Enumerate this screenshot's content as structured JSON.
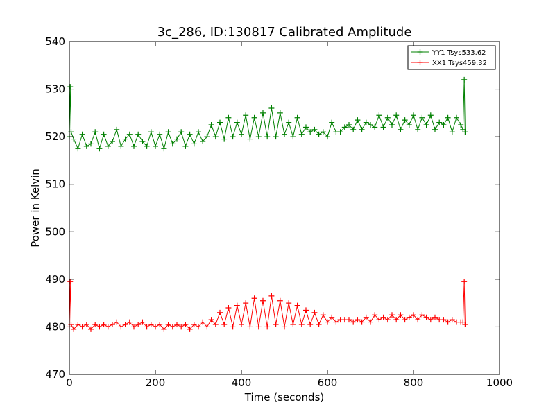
{
  "chart_data": {
    "type": "line",
    "title": "3c_286, ID:130817 Calibrated Amplitude",
    "xlabel": "Time (seconds)",
    "ylabel": "Power in Kelvin",
    "xlim": [
      0,
      1000
    ],
    "ylim": [
      470,
      540
    ],
    "x_ticks": [
      "0",
      "200",
      "400",
      "600",
      "800",
      "1000"
    ],
    "y_ticks": [
      "470",
      "480",
      "490",
      "500",
      "510",
      "520",
      "530",
      "540"
    ],
    "grid": false,
    "legend_position": "top-right",
    "marker": "plus",
    "series": [
      {
        "name": "YY1 Tsys533.62",
        "color": "#008000",
        "x": [
          0,
          2,
          4,
          10,
          20,
          30,
          40,
          50,
          60,
          70,
          80,
          90,
          100,
          110,
          120,
          130,
          140,
          150,
          160,
          170,
          180,
          190,
          200,
          210,
          220,
          230,
          240,
          250,
          260,
          270,
          280,
          290,
          300,
          310,
          320,
          330,
          340,
          350,
          360,
          370,
          380,
          390,
          400,
          410,
          420,
          430,
          440,
          450,
          460,
          470,
          480,
          490,
          500,
          510,
          520,
          530,
          540,
          550,
          560,
          570,
          580,
          590,
          600,
          610,
          620,
          630,
          640,
          650,
          660,
          670,
          680,
          690,
          700,
          710,
          720,
          730,
          740,
          750,
          760,
          770,
          780,
          790,
          800,
          810,
          820,
          830,
          840,
          850,
          860,
          870,
          880,
          890,
          900,
          910,
          915,
          918,
          920
        ],
        "y": [
          520,
          530.5,
          521,
          519.5,
          517.5,
          520.5,
          518,
          518.5,
          521,
          517.5,
          520.5,
          518,
          519,
          521.5,
          518,
          519.5,
          520.5,
          518,
          520.5,
          519,
          518,
          521,
          518,
          520.5,
          517.5,
          521,
          518.5,
          519.5,
          521,
          518,
          520.5,
          518.5,
          521,
          519,
          520,
          522.5,
          520,
          523,
          519.5,
          524,
          520,
          523,
          520.5,
          524.5,
          519.5,
          524,
          520,
          525,
          520,
          526,
          520,
          525,
          520.5,
          523,
          520,
          524,
          520.5,
          522,
          521,
          521.5,
          520.5,
          521,
          520,
          523,
          521,
          521,
          522,
          522.5,
          521.5,
          523.5,
          521.5,
          523,
          522.5,
          522,
          524.5,
          522,
          524,
          522.5,
          524.5,
          521.5,
          523.5,
          522.5,
          524.5,
          521.5,
          524,
          522.5,
          524.5,
          521.5,
          523,
          522.5,
          524,
          521,
          524,
          522.5,
          521.5,
          532,
          521
        ]
      },
      {
        "name": "XX1 Tsys459.32",
        "color": "#ff0000",
        "x": [
          0,
          2,
          4,
          10,
          20,
          30,
          40,
          50,
          60,
          70,
          80,
          90,
          100,
          110,
          120,
          130,
          140,
          150,
          160,
          170,
          180,
          190,
          200,
          210,
          220,
          230,
          240,
          250,
          260,
          270,
          280,
          290,
          300,
          310,
          320,
          330,
          340,
          350,
          360,
          370,
          380,
          390,
          400,
          410,
          420,
          430,
          440,
          450,
          460,
          470,
          480,
          490,
          500,
          510,
          520,
          530,
          540,
          550,
          560,
          570,
          580,
          590,
          600,
          610,
          620,
          630,
          640,
          650,
          660,
          670,
          680,
          690,
          700,
          710,
          720,
          730,
          740,
          750,
          760,
          770,
          780,
          790,
          800,
          810,
          820,
          830,
          840,
          850,
          860,
          870,
          880,
          890,
          900,
          910,
          915,
          918,
          920
        ],
        "y": [
          480,
          489.5,
          480.5,
          479.5,
          480.5,
          480,
          480.5,
          479.5,
          480.5,
          480,
          480.5,
          480,
          480.5,
          481,
          480,
          480.5,
          481,
          480,
          480.5,
          481,
          480,
          480.5,
          480,
          480.5,
          479.5,
          480.5,
          480,
          480.5,
          480,
          480.5,
          479.5,
          480.5,
          480,
          481,
          480,
          481.5,
          480.5,
          483,
          480.5,
          484,
          480,
          484.5,
          480.5,
          485,
          480,
          486,
          480,
          485.5,
          480,
          486.5,
          480.5,
          485.5,
          480,
          485,
          480.5,
          484.5,
          480.5,
          483.5,
          480.5,
          483,
          480.5,
          482.5,
          481,
          482,
          481,
          481.5,
          481.5,
          481.5,
          481,
          481.5,
          481,
          482,
          481,
          482.5,
          481.5,
          482,
          481.5,
          482.5,
          481.5,
          482.5,
          481.5,
          482,
          482.5,
          481.5,
          482.5,
          482,
          481.5,
          482,
          481.5,
          481.5,
          481,
          481.5,
          481,
          481,
          481,
          489.5,
          480.5
        ]
      }
    ]
  }
}
